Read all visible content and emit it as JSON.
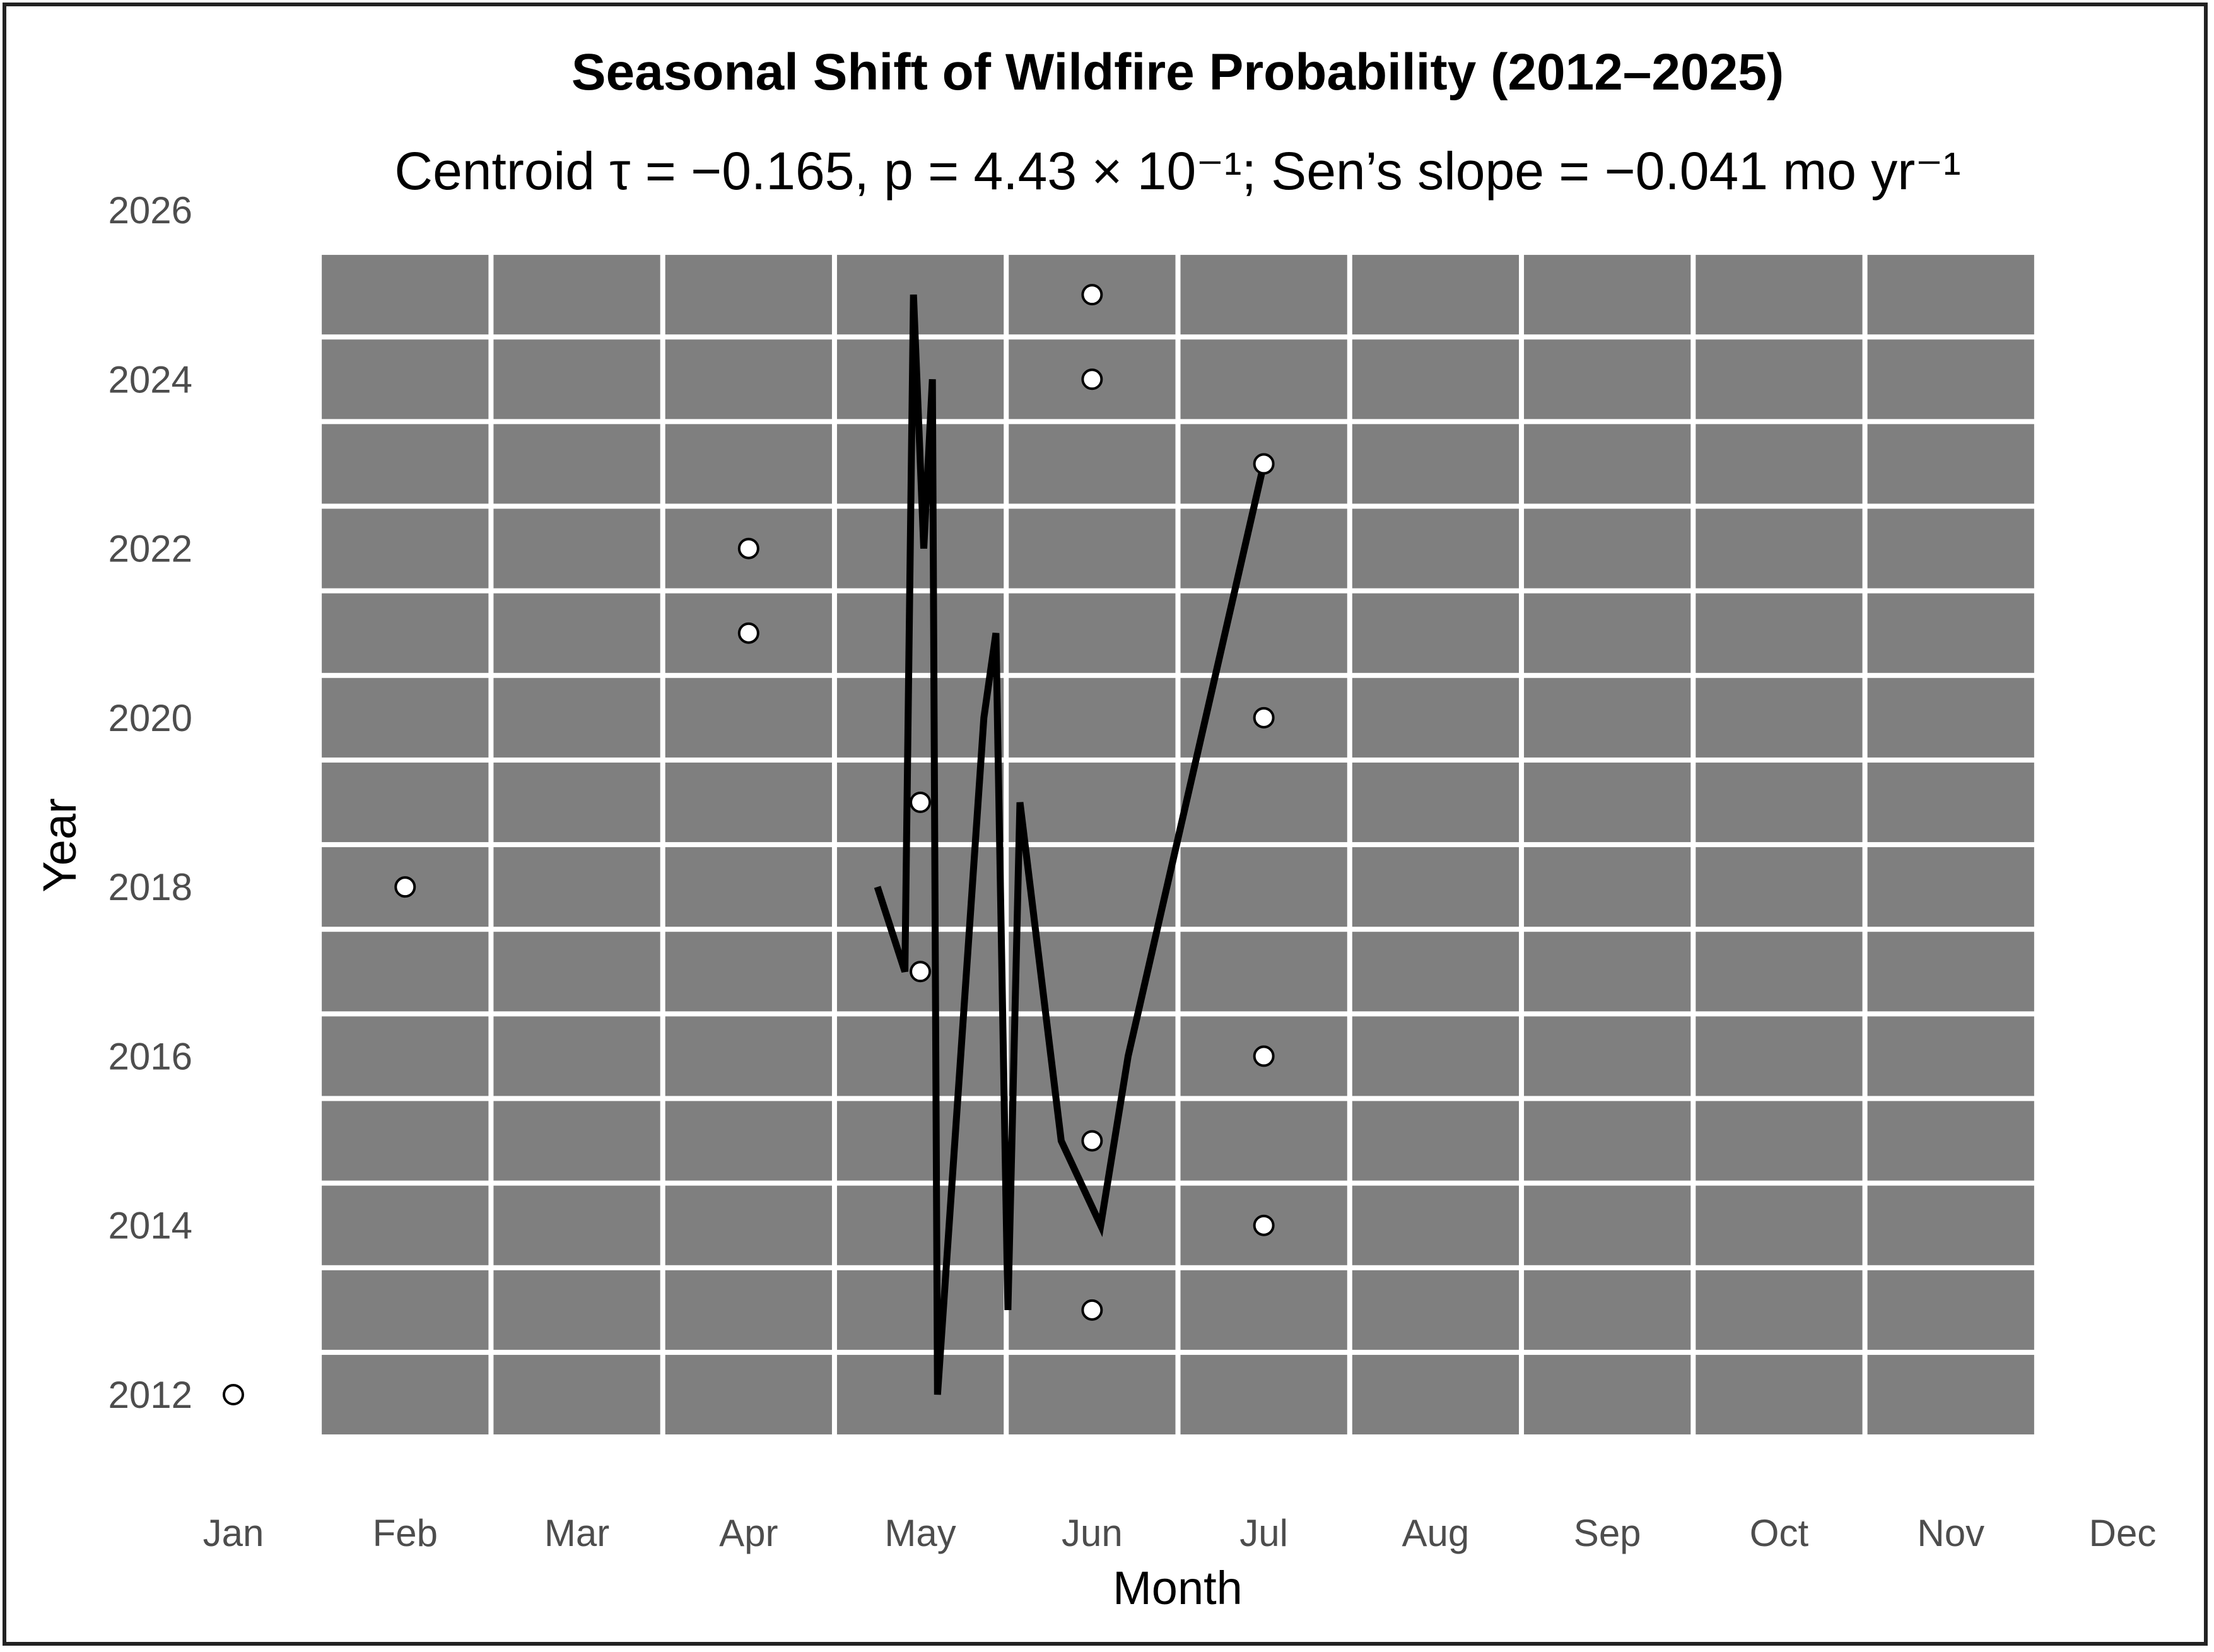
{
  "chart_data": {
    "type": "scatter",
    "title": "Seasonal Shift of Wildfire Probability (2012–2025)",
    "subtitle": "Centroid τ = −0.165, p = 4.43 × 10⁻¹; Sen’s slope = −0.041 mo yr⁻¹",
    "xlabel": "Month",
    "ylabel": "Year",
    "x_tick_labels": [
      "Jan",
      "Feb",
      "Mar",
      "Apr",
      "May",
      "Jun",
      "Jul",
      "Aug",
      "Sep",
      "Oct",
      "Nov",
      "Dec"
    ],
    "y_ticks": [
      2012,
      2014,
      2016,
      2018,
      2020,
      2022,
      2024,
      2026
    ],
    "xlim": [
      1,
      12
    ],
    "ylim": [
      2012,
      2026
    ],
    "colors": {
      "panel": "#7f7f7f",
      "grid": "#ffffff",
      "line": "#000000",
      "point_fill": "#ffffff",
      "point_edge": "#000000"
    },
    "points": [
      {
        "x": 1,
        "y": 2012
      },
      {
        "x": 2,
        "y": 2018
      },
      {
        "x": 4,
        "y": 2021
      },
      {
        "x": 4,
        "y": 2022
      },
      {
        "x": 5,
        "y": 2017
      },
      {
        "x": 5,
        "y": 2019
      },
      {
        "x": 6,
        "y": 2013
      },
      {
        "x": 6,
        "y": 2015
      },
      {
        "x": 6,
        "y": 2024
      },
      {
        "x": 6,
        "y": 2025
      },
      {
        "x": 7,
        "y": 2014
      },
      {
        "x": 7,
        "y": 2016
      },
      {
        "x": 7,
        "y": 2020
      },
      {
        "x": 7,
        "y": 2023
      }
    ],
    "centroid_line": {
      "name": "",
      "x": [
        4.75,
        4.91,
        4.96,
        5.02,
        5.07,
        5.1,
        5.37,
        5.44,
        5.51,
        5.58,
        5.82,
        6.05,
        6.21,
        7.0
      ],
      "y": [
        2018,
        2017,
        2025,
        2022,
        2024,
        2012,
        2020,
        2021,
        2013,
        2019,
        2015,
        2014,
        2016,
        2023
      ]
    }
  }
}
